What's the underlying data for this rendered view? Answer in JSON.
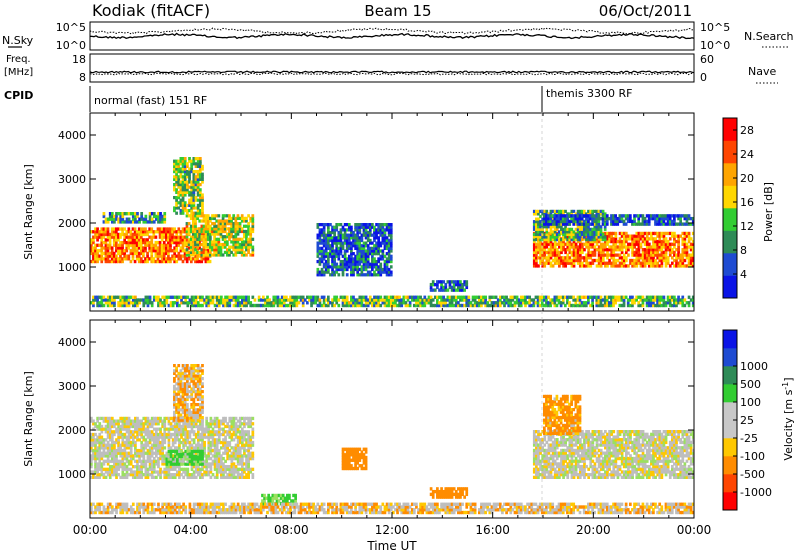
{
  "header": {
    "title": "Kodiak (fitACF)",
    "beam": "Beam 15",
    "date": "06/Oct/2011"
  },
  "noise_panel": {
    "left_label": "N.Sky",
    "right_label": "N.Search",
    "ticks_left": [
      "10^5",
      "10^0"
    ],
    "ticks_right": [
      "10^5",
      "10^0"
    ]
  },
  "freq_panel": {
    "left_label_1": "Freq.",
    "left_label_2": "[MHz]",
    "right_label": "Nave",
    "ticks_left": [
      "18",
      "8"
    ],
    "ticks_right": [
      "60",
      "0"
    ]
  },
  "cpid_panel": {
    "label": "CPID",
    "mode_1": "normal (fast) 151 RF",
    "mode_2": "themis 3300 RF"
  },
  "colors": {
    "power_scale": [
      "#0a14e6",
      "#1e4bd2",
      "#2e8b57",
      "#32cd32",
      "#ffd700",
      "#ffa500",
      "#ff4500",
      "#ff0000"
    ],
    "velocity_scale": [
      "#ff0000",
      "#ff4500",
      "#ff8c00",
      "#ffc800",
      "#c8c8c8",
      "#c8c8c8",
      "#32cd32",
      "#2e8b57",
      "#1e4bd2",
      "#0a14e6"
    ],
    "ground_scatter": "#bebebe"
  },
  "chart_data": [
    {
      "type": "heatmap",
      "name": "power",
      "ylabel": "Slant Range [km]",
      "ylim": [
        0,
        4500
      ],
      "xlim": [
        0,
        24
      ],
      "yticks": [
        "1000",
        "2000",
        "3000",
        "4000"
      ],
      "colorbar_label": "Power [dB]",
      "colorbar_ticks": [
        "4",
        "8",
        "12",
        "16",
        "20",
        "24",
        "28"
      ],
      "colorbar_range": [
        0,
        30
      ],
      "regions": [
        {
          "t0": 0.0,
          "t1": 4.8,
          "r0": 1100,
          "r1": 1900,
          "level": 22
        },
        {
          "t0": 3.8,
          "t1": 6.5,
          "r0": 1250,
          "r1": 2200,
          "level": 16
        },
        {
          "t0": 0.5,
          "t1": 3.0,
          "r0": 2000,
          "r1": 2250,
          "level": 10
        },
        {
          "t0": 3.3,
          "t1": 4.5,
          "r0": 2200,
          "r1": 3500,
          "level": 14
        },
        {
          "t0": 17.6,
          "t1": 24.0,
          "r0": 1000,
          "r1": 1800,
          "level": 22
        },
        {
          "t0": 17.6,
          "t1": 20.5,
          "r0": 1600,
          "r1": 2300,
          "level": 12
        },
        {
          "t0": 18.0,
          "t1": 24.0,
          "r0": 1950,
          "r1": 2200,
          "level": 6
        },
        {
          "t0": 9.0,
          "t1": 12.0,
          "r0": 800,
          "r1": 2000,
          "level": 6
        },
        {
          "t0": 13.5,
          "t1": 15.0,
          "r0": 450,
          "r1": 700,
          "level": 6
        },
        {
          "t0": 0.0,
          "t1": 24.0,
          "r0": 100,
          "r1": 350,
          "level": 12
        }
      ]
    },
    {
      "type": "heatmap",
      "name": "velocity",
      "ylabel": "Slant Range [km]",
      "xlabel": "Time UT",
      "ylim": [
        0,
        4500
      ],
      "xlim": [
        0,
        24
      ],
      "yticks": [
        "1000",
        "2000",
        "3000",
        "4000"
      ],
      "xticks": [
        "00:00",
        "04:00",
        "08:00",
        "12:00",
        "16:00",
        "20:00",
        "00:00"
      ],
      "colorbar_label": "Velocity [m s^-1]",
      "colorbar_ticks": [
        "-1000",
        "-500",
        "-100",
        "-25",
        "25",
        "100",
        "500",
        "1000"
      ],
      "regions": [
        {
          "t0": 0.0,
          "t1": 6.5,
          "r0": 900,
          "r1": 2300,
          "value": 0
        },
        {
          "t0": 3.0,
          "t1": 4.5,
          "r0": 1200,
          "r1": 1550,
          "value": 150
        },
        {
          "t0": 3.3,
          "t1": 4.5,
          "r0": 2200,
          "r1": 3500,
          "value": -80
        },
        {
          "t0": 10.0,
          "t1": 11.0,
          "r0": 1100,
          "r1": 1600,
          "value": -200
        },
        {
          "t0": 13.5,
          "t1": 15.0,
          "r0": 450,
          "r1": 700,
          "value": -300
        },
        {
          "t0": 6.8,
          "t1": 8.2,
          "r0": 300,
          "r1": 550,
          "value": 150
        },
        {
          "t0": 17.6,
          "t1": 24.0,
          "r0": 900,
          "r1": 2000,
          "value": 0
        },
        {
          "t0": 18.0,
          "t1": 19.5,
          "r0": 1900,
          "r1": 2800,
          "value": -150
        },
        {
          "t0": 0.0,
          "t1": 24.0,
          "r0": 100,
          "r1": 350,
          "value": -60
        }
      ]
    }
  ]
}
